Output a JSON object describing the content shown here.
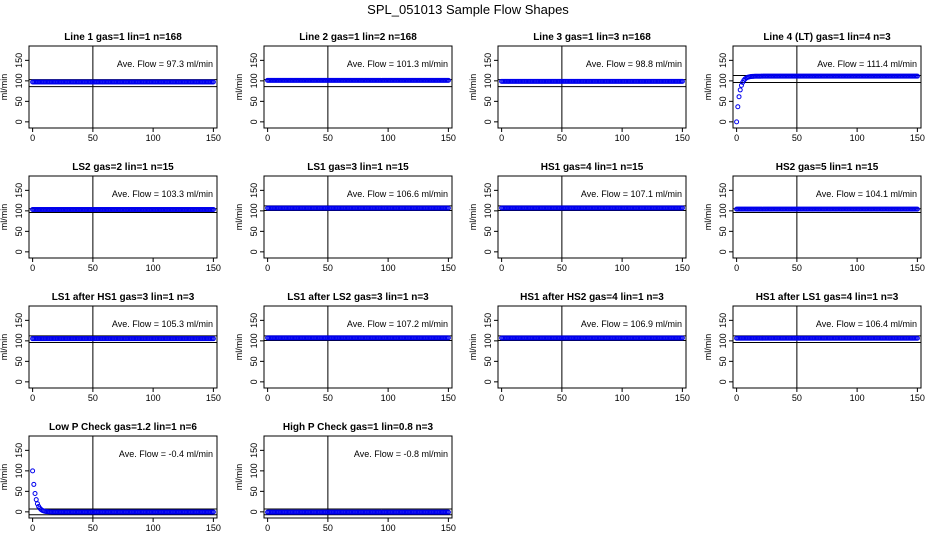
{
  "figure_title": "SPL_051013  Sample Flow Shapes",
  "colors": {
    "points": "#0000ee",
    "axes": "#000000",
    "background": "#ffffff"
  },
  "chart_data": [
    {
      "type": "scatter",
      "title": "Line 1 gas=1 lin=1 n=168",
      "ylabel": "ml/min",
      "annotation": "Ave. Flow =  97.3  ml/min",
      "x_ticks": [
        0,
        50,
        100,
        150
      ],
      "y_ticks": [
        0,
        50,
        100,
        150
      ],
      "xlim": [
        -3,
        153
      ],
      "ylim": [
        -15,
        185
      ],
      "shape": "flat",
      "level": 97.3,
      "hlines": [
        86,
        103
      ],
      "vline": 50
    },
    {
      "type": "scatter",
      "title": "Line 2 gas=1 lin=2 n=168",
      "ylabel": "ml/min",
      "annotation": "Ave. Flow =  101.3  ml/min",
      "x_ticks": [
        0,
        50,
        100,
        150
      ],
      "y_ticks": [
        0,
        50,
        100,
        150
      ],
      "xlim": [
        -3,
        153
      ],
      "ylim": [
        -15,
        185
      ],
      "shape": "flat",
      "level": 101.3,
      "hlines": [
        86,
        103
      ],
      "vline": 50
    },
    {
      "type": "scatter",
      "title": "Line 3 gas=1 lin=3 n=168",
      "ylabel": "ml/min",
      "annotation": "Ave. Flow =  98.8  ml/min",
      "x_ticks": [
        0,
        50,
        100,
        150
      ],
      "y_ticks": [
        0,
        50,
        100,
        150
      ],
      "xlim": [
        -3,
        153
      ],
      "ylim": [
        -15,
        185
      ],
      "shape": "flat",
      "level": 98.8,
      "hlines": [
        86,
        103
      ],
      "vline": 50
    },
    {
      "type": "scatter",
      "title": "Line 4 (LT) gas=1 lin=4 n=3",
      "ylabel": "ml/min",
      "annotation": "Ave. Flow =  111.4  ml/min",
      "x_ticks": [
        0,
        50,
        100,
        150
      ],
      "y_ticks": [
        0,
        50,
        100,
        150
      ],
      "xlim": [
        -3,
        153
      ],
      "ylim": [
        -15,
        185
      ],
      "shape": "rise",
      "level": 111.4,
      "start": 0,
      "hlines": [
        96,
        113
      ],
      "vline": 50
    },
    {
      "type": "scatter",
      "title": "LS2 gas=2 lin=1 n=15",
      "ylabel": "ml/min",
      "annotation": "Ave. Flow =  103.3  ml/min",
      "x_ticks": [
        0,
        50,
        100,
        150
      ],
      "y_ticks": [
        0,
        50,
        100,
        150
      ],
      "xlim": [
        -3,
        153
      ],
      "ylim": [
        -15,
        185
      ],
      "shape": "flat",
      "level": 103.3,
      "hlines": [
        96,
        105
      ],
      "vline": 50
    },
    {
      "type": "scatter",
      "title": "LS1 gas=3 lin=1 n=15",
      "ylabel": "ml/min",
      "annotation": "Ave. Flow =  106.6  ml/min",
      "x_ticks": [
        0,
        50,
        100,
        150
      ],
      "y_ticks": [
        0,
        50,
        100,
        150
      ],
      "xlim": [
        -3,
        153
      ],
      "ylim": [
        -15,
        185
      ],
      "shape": "flat",
      "level": 106.6,
      "hlines": [
        101,
        112
      ],
      "vline": 50
    },
    {
      "type": "scatter",
      "title": "HS1 gas=4 lin=1 n=15",
      "ylabel": "ml/min",
      "annotation": "Ave. Flow =  107.1  ml/min",
      "x_ticks": [
        0,
        50,
        100,
        150
      ],
      "y_ticks": [
        0,
        50,
        100,
        150
      ],
      "xlim": [
        -3,
        153
      ],
      "ylim": [
        -15,
        185
      ],
      "shape": "flat",
      "level": 107.1,
      "hlines": [
        101,
        112
      ],
      "vline": 50
    },
    {
      "type": "scatter",
      "title": "HS2 gas=5 lin=1 n=15",
      "ylabel": "ml/min",
      "annotation": "Ave. Flow =  104.1  ml/min",
      "x_ticks": [
        0,
        50,
        100,
        150
      ],
      "y_ticks": [
        0,
        50,
        100,
        150
      ],
      "xlim": [
        -3,
        153
      ],
      "ylim": [
        -15,
        185
      ],
      "shape": "flat",
      "level": 104.1,
      "hlines": [
        96,
        105
      ],
      "vline": 50
    },
    {
      "type": "scatter",
      "title": "LS1 after HS1 gas=3 lin=1 n=3",
      "ylabel": "ml/min",
      "annotation": "Ave. Flow =  105.3  ml/min",
      "x_ticks": [
        0,
        50,
        100,
        150
      ],
      "y_ticks": [
        0,
        50,
        100,
        150
      ],
      "xlim": [
        -3,
        153
      ],
      "ylim": [
        -15,
        185
      ],
      "shape": "flat",
      "level": 105.3,
      "hlines": [
        96,
        112
      ],
      "vline": 50
    },
    {
      "type": "scatter",
      "title": "LS1 after LS2 gas=3 lin=1 n=3",
      "ylabel": "ml/min",
      "annotation": "Ave. Flow =  107.2  ml/min",
      "x_ticks": [
        0,
        50,
        100,
        150
      ],
      "y_ticks": [
        0,
        50,
        100,
        150
      ],
      "xlim": [
        -3,
        153
      ],
      "ylim": [
        -15,
        185
      ],
      "shape": "flat",
      "level": 107.2,
      "hlines": [
        101,
        112
      ],
      "vline": 50
    },
    {
      "type": "scatter",
      "title": "HS1 after HS2 gas=4 lin=1 n=3",
      "ylabel": "ml/min",
      "annotation": "Ave. Flow =  106.9  ml/min",
      "x_ticks": [
        0,
        50,
        100,
        150
      ],
      "y_ticks": [
        0,
        50,
        100,
        150
      ],
      "xlim": [
        -3,
        153
      ],
      "ylim": [
        -15,
        185
      ],
      "shape": "flat",
      "level": 106.9,
      "hlines": [
        101,
        112
      ],
      "vline": 50
    },
    {
      "type": "scatter",
      "title": "HS1 after LS1 gas=4 lin=1 n=3",
      "ylabel": "ml/min",
      "annotation": "Ave. Flow =  106.4  ml/min",
      "x_ticks": [
        0,
        50,
        100,
        150
      ],
      "y_ticks": [
        0,
        50,
        100,
        150
      ],
      "xlim": [
        -3,
        153
      ],
      "ylim": [
        -15,
        185
      ],
      "shape": "flat",
      "level": 106.4,
      "hlines": [
        96,
        112
      ],
      "vline": 50
    },
    {
      "type": "scatter",
      "title": "Low P Check gas=1.2 lin=1 n=6",
      "ylabel": "ml/min",
      "annotation": "Ave. Flow =  -0.4  ml/min",
      "x_ticks": [
        0,
        50,
        100,
        150
      ],
      "y_ticks": [
        0,
        50,
        100,
        150
      ],
      "xlim": [
        -3,
        153
      ],
      "ylim": [
        -15,
        185
      ],
      "shape": "decay",
      "level": -0.4,
      "start": 100,
      "hlines": [
        -7,
        7
      ],
      "vline": 50
    },
    {
      "type": "scatter",
      "title": "High P Check gas=1 lin=0.8 n=3",
      "ylabel": "ml/min",
      "annotation": "Ave. Flow =  -0.8  ml/min",
      "x_ticks": [
        0,
        50,
        100,
        150
      ],
      "y_ticks": [
        0,
        50,
        100,
        150
      ],
      "xlim": [
        -3,
        153
      ],
      "ylim": [
        -15,
        185
      ],
      "shape": "flat",
      "level": -0.8,
      "hlines": [
        -7,
        7
      ],
      "vline": 50
    }
  ]
}
